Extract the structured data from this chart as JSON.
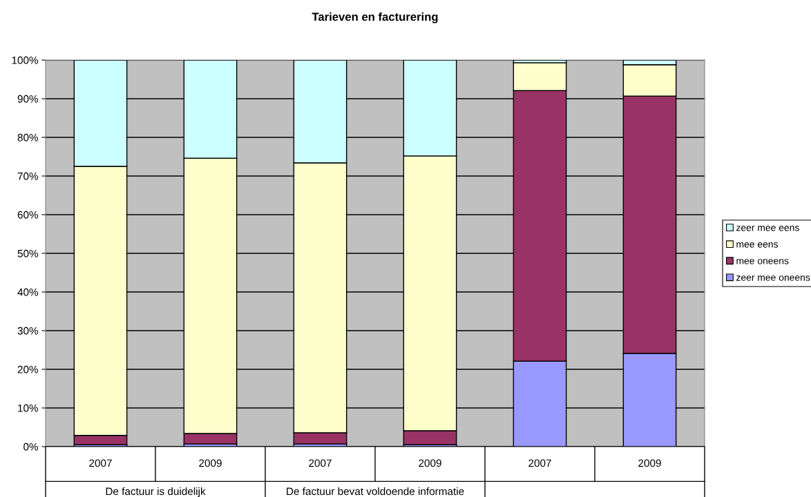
{
  "chart_data": {
    "type": "bar",
    "title": "Tarieven en facturering",
    "stacked": true,
    "categories": [
      "2007",
      "2009",
      "2007",
      "2009",
      "2007",
      "2009"
    ],
    "series": [
      {
        "name": "zeer mee oneens",
        "color": "#9999ff",
        "values": [
          0.5,
          0.7,
          0.7,
          0.5,
          22.1,
          24.1
        ]
      },
      {
        "name": "mee oneens",
        "color": "#993366",
        "values": [
          2.4,
          2.7,
          2.9,
          3.6,
          70.0,
          66.6
        ]
      },
      {
        "name": "mee eens",
        "color": "#ffffcc",
        "values": [
          69.6,
          71.2,
          69.8,
          71.1,
          7.2,
          8.1
        ]
      },
      {
        "name": "zeer mee eens",
        "color": "#ccffff",
        "values": [
          27.5,
          25.4,
          26.6,
          24.8,
          0.7,
          1.2
        ]
      }
    ],
    "ylim": [
      0,
      100
    ],
    "yticks": [
      {
        "value": 0,
        "label": "0%"
      },
      {
        "value": 10,
        "label": "10%"
      },
      {
        "value": 20,
        "label": "20%"
      },
      {
        "value": 30,
        "label": "30%"
      },
      {
        "value": 40,
        "label": "40%"
      },
      {
        "value": 50,
        "label": "50%"
      },
      {
        "value": 60,
        "label": "60%"
      },
      {
        "value": 70,
        "label": "70%"
      },
      {
        "value": 80,
        "label": "80%"
      },
      {
        "value": 90,
        "label": "90%"
      },
      {
        "value": 100,
        "label": "100%"
      }
    ],
    "grid": "y",
    "legend": "right",
    "annotations": [
      "De factuur is duidelijk",
      "De factuur bevat voldoende informatie"
    ]
  }
}
